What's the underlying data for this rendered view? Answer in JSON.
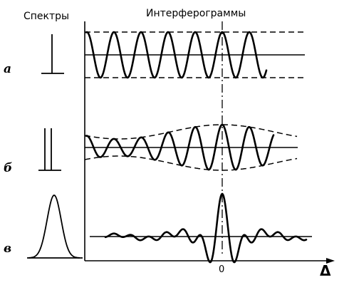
{
  "headers": {
    "spectra": "Спектры",
    "interferograms": "Интерферограммы"
  },
  "rows": [
    {
      "label": "а",
      "spectrum": "single-line"
    },
    {
      "label": "б",
      "spectrum": "double-line"
    },
    {
      "label": "в",
      "spectrum": "bell-shaped"
    }
  ],
  "axis": {
    "zero_label": "0",
    "name": "Δ"
  }
}
